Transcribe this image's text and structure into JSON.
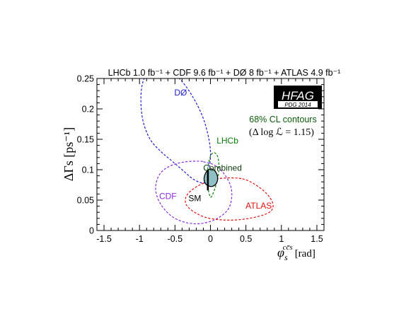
{
  "chart_data": {
    "type": "line",
    "title": "LHCb  1.0 fb⁻¹ + CDF  9.6 fb⁻¹ + DØ  8 fb⁻¹ + ATLAS  4.9 fb⁻¹",
    "xlabel": "φs^cc̄s [rad]",
    "xlabel_main": "φ",
    "xlabel_sub": "s",
    "xlabel_sup": "cc̄s",
    "xlabel_unit": "[rad]",
    "ylabel": "ΔΓs [ps⁻¹]",
    "xlim": [
      -1.6,
      1.6
    ],
    "ylim": [
      0,
      0.25
    ],
    "x_ticks": [
      -1.5,
      -1.0,
      -0.5,
      0.0,
      0.5,
      1.0,
      1.5
    ],
    "x_tick_labels": [
      "-1.5",
      "-1",
      "-0.5",
      "0",
      "0.5",
      "1",
      "1.5"
    ],
    "y_ticks": [
      0,
      0.05,
      0.1,
      0.15,
      0.2,
      0.25
    ],
    "y_tick_labels": [
      "0",
      "0.05",
      "0.1",
      "0.15",
      "0.2",
      "0.25"
    ],
    "grid": false,
    "logo": {
      "main": "HFAG",
      "sub": "PDG 2014"
    },
    "annotation": {
      "line1": "68% CL contours",
      "line2": "(Δ log ℒ = 1.15)"
    },
    "series": [
      {
        "name": "DØ",
        "color": "#1f1fd0",
        "style": "dashed",
        "label_pos": [
          -0.42,
          0.222
        ],
        "x": [
          -0.08,
          -0.02,
          0.0,
          -0.04,
          -0.12,
          -0.25,
          -0.4,
          -0.55,
          -0.7,
          -0.85,
          -0.95,
          -0.98,
          -0.95,
          -0.85,
          -0.7,
          -0.55,
          -0.4,
          -0.25,
          -0.12,
          -0.08
        ],
        "y": [
          0.08,
          0.1,
          0.13,
          0.16,
          0.19,
          0.22,
          0.245,
          0.26,
          0.265,
          0.262,
          0.245,
          0.215,
          0.18,
          0.15,
          0.13,
          0.115,
          0.1,
          0.085,
          0.078,
          0.08
        ]
      },
      {
        "name": "CDF",
        "color": "#8a2be2",
        "style": "dashed",
        "label_pos": [
          -0.6,
          0.052
        ],
        "x": [
          -0.1,
          0.05,
          0.18,
          0.28,
          0.3,
          0.25,
          0.1,
          -0.1,
          -0.3,
          -0.5,
          -0.65,
          -0.75,
          -0.77,
          -0.7,
          -0.55,
          -0.35,
          -0.15,
          -0.1
        ],
        "y": [
          0.113,
          0.108,
          0.095,
          0.075,
          0.055,
          0.035,
          0.02,
          0.012,
          0.012,
          0.02,
          0.035,
          0.055,
          0.075,
          0.095,
          0.107,
          0.113,
          0.114,
          0.113
        ]
      },
      {
        "name": "ATLAS",
        "color": "#e01010",
        "style": "dashed",
        "label_pos": [
          0.68,
          0.036
        ],
        "x": [
          0.45,
          0.7,
          0.85,
          0.88,
          0.8,
          0.55,
          0.25,
          -0.05,
          -0.25,
          -0.35,
          -0.32,
          -0.15,
          0.1,
          0.45
        ],
        "y": [
          0.085,
          0.07,
          0.052,
          0.038,
          0.028,
          0.02,
          0.017,
          0.021,
          0.032,
          0.045,
          0.06,
          0.075,
          0.085,
          0.085
        ]
      },
      {
        "name": "LHCb",
        "color": "#0a7a0a",
        "style": "dashed",
        "label_pos": [
          0.24,
          0.143
        ],
        "x": [
          0.0,
          0.05,
          0.1,
          0.12,
          0.1,
          0.05,
          0.0,
          -0.04,
          -0.04,
          0.0
        ],
        "y": [
          0.055,
          0.065,
          0.085,
          0.105,
          0.122,
          0.128,
          0.122,
          0.1,
          0.075,
          0.055
        ]
      },
      {
        "name": "Combined",
        "color": "#000000",
        "fill": "#8fc0c6",
        "style": "solid",
        "label_pos": [
          0.17,
          0.098
        ],
        "x": [
          0.02,
          0.07,
          0.1,
          0.09,
          0.04,
          -0.02,
          -0.07,
          -0.09,
          -0.07,
          -0.03,
          0.02
        ],
        "y": [
          0.101,
          0.097,
          0.088,
          0.079,
          0.073,
          0.073,
          0.077,
          0.085,
          0.094,
          0.1,
          0.101
        ]
      }
    ],
    "sm": {
      "name": "SM",
      "x": -0.0363,
      "y_low": 0.066,
      "y_high": 0.1,
      "label_pos": [
        -0.22,
        0.048
      ]
    }
  }
}
